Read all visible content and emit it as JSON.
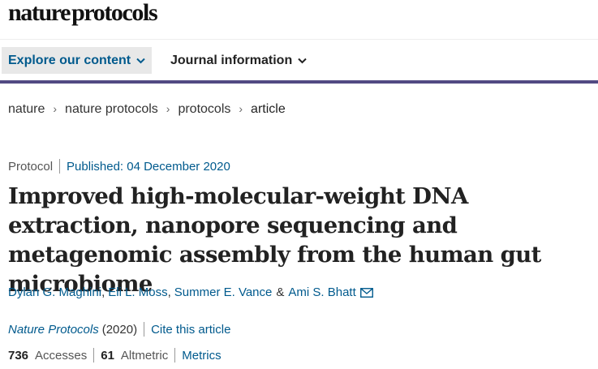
{
  "brand": {
    "name_part1": "nature",
    "name_part2": "protocols"
  },
  "nav": {
    "items": [
      {
        "label": "Explore our content",
        "icon": "chevron-down-icon"
      },
      {
        "label": "Journal information",
        "icon": "chevron-down-icon"
      }
    ]
  },
  "breadcrumb": {
    "items": [
      "nature",
      "nature protocols",
      "protocols",
      "article"
    ],
    "separator": "›"
  },
  "article": {
    "type": "Protocol",
    "published": "Published: 04 December 2020",
    "title": "Improved high-molecular-weight DNA extraction, nanopore sequencing and metagenomic assembly from the human gut microbiome",
    "authors": [
      "Dylan G. Maghini",
      "Eli L. Moss",
      "Summer E. Vance",
      "Ami S. Bhatt"
    ],
    "author_separator": ",",
    "author_conjunction": "&",
    "journal": "Nature Protocols",
    "year": "(2020)",
    "cite_label": "Cite this article",
    "metrics": {
      "accesses_value": "736",
      "accesses_label": "Accesses",
      "altmetric_value": "61",
      "altmetric_label": "Altmetric",
      "link_label": "Metrics"
    }
  },
  "colors": {
    "link": "#005a8d",
    "nav_active_bg": "#e8e8e8",
    "accent_bar": "#524a83",
    "text": "#222222"
  }
}
